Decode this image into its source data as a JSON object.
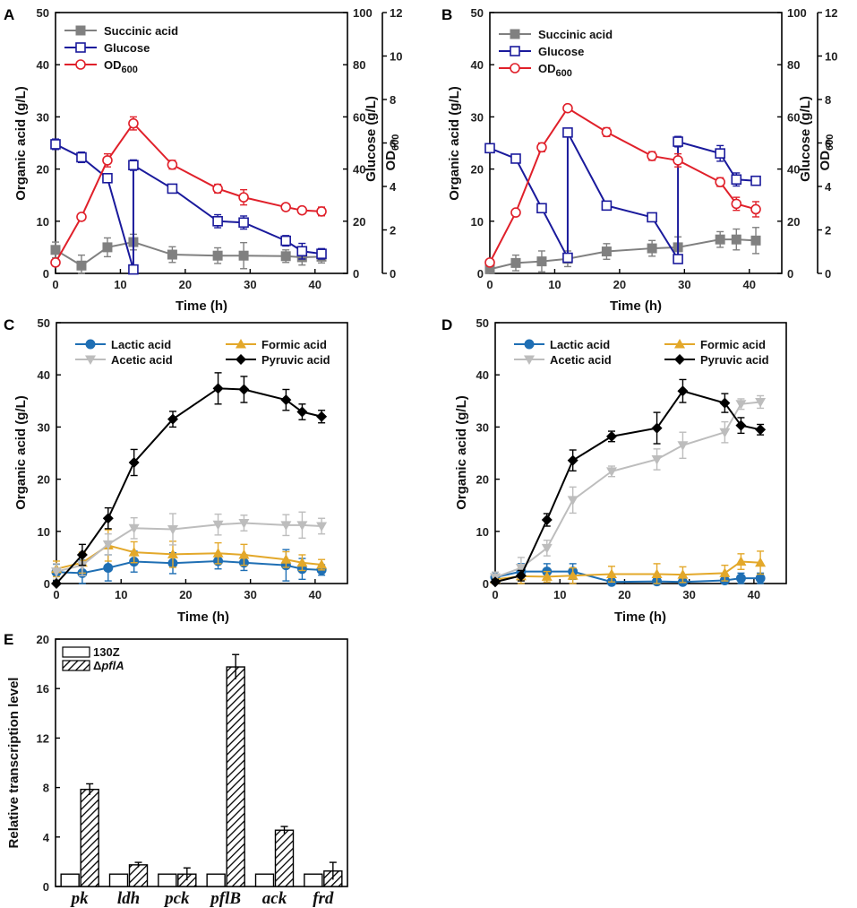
{
  "chart_data": [
    {
      "panel": "A",
      "type": "line",
      "xlabel": "Time (h)",
      "ylabel": "Organic acid (g/L)",
      "y2label": "Glucose (g/L)",
      "y3label": "OD600",
      "xlim": [
        0,
        45
      ],
      "xticks": [
        0,
        10,
        20,
        30,
        40
      ],
      "ylim": [
        0,
        50
      ],
      "yticks": [
        0,
        10,
        20,
        30,
        40,
        50
      ],
      "y2lim": [
        0,
        100
      ],
      "y2ticks": [
        0,
        20,
        40,
        60,
        80,
        100
      ],
      "y3lim": [
        0,
        12
      ],
      "y3ticks": [
        0,
        2,
        4,
        6,
        8,
        10,
        12
      ],
      "legend_position": "top-left",
      "series": [
        {
          "name": "Succinic acid",
          "axis": "left",
          "color": "#808080",
          "marker": "square-filled",
          "x": [
            0,
            4,
            8,
            12,
            18,
            25,
            29,
            35.5,
            38,
            41
          ],
          "y": [
            4.5,
            1.5,
            5.0,
            6.0,
            3.6,
            3.4,
            3.4,
            3.3,
            3.1,
            3.2
          ],
          "err": [
            1.5,
            2.0,
            1.8,
            1.5,
            1.5,
            1.5,
            2.5,
            1.2,
            1.5,
            1.2
          ]
        },
        {
          "name": "Glucose",
          "axis": "right",
          "color": "#1a1a9c",
          "marker": "square-open",
          "x": [
            0,
            4,
            8,
            12,
            12,
            18,
            25,
            29,
            35.5,
            38,
            41
          ],
          "y": [
            49.5,
            44.5,
            36.5,
            1.5,
            41.5,
            32.5,
            20,
            19.5,
            12.5,
            8.5,
            7.5
          ],
          "err": [
            2,
            2,
            1.5,
            1,
            2,
            1,
            2.5,
            2.5,
            2,
            3,
            2
          ]
        },
        {
          "name": "OD600",
          "label_main": "OD",
          "label_sub": "600",
          "axis": "right2",
          "color": "#e0202a",
          "marker": "circle-open",
          "x": [
            0,
            4,
            8,
            12,
            18,
            25,
            29,
            35.5,
            38,
            41
          ],
          "y": [
            0.5,
            2.6,
            5.2,
            6.9,
            5.0,
            3.9,
            3.5,
            3.05,
            2.9,
            2.85
          ],
          "err": [
            0.15,
            0.15,
            0.3,
            0.3,
            0.2,
            0.2,
            0.35,
            0.15,
            0.15,
            0.2
          ]
        }
      ]
    },
    {
      "panel": "B",
      "type": "line",
      "xlabel": "Time (h)",
      "ylabel": "Organic acid (g/L)",
      "y2label": "Glucose (g/L)",
      "y3label": "OD600",
      "xlim": [
        0,
        45
      ],
      "xticks": [
        0,
        10,
        20,
        30,
        40
      ],
      "ylim": [
        0,
        50
      ],
      "yticks": [
        0,
        10,
        20,
        30,
        40,
        50
      ],
      "y2lim": [
        0,
        100
      ],
      "y2ticks": [
        0,
        20,
        40,
        60,
        80,
        100
      ],
      "y3lim": [
        0,
        12
      ],
      "y3ticks": [
        0,
        2,
        4,
        6,
        8,
        10,
        12
      ],
      "legend_position": "top-left",
      "series": [
        {
          "name": "Succinic acid",
          "axis": "left",
          "color": "#808080",
          "marker": "square-filled",
          "x": [
            0,
            4,
            8,
            12,
            18,
            25,
            29,
            35.5,
            38,
            41
          ],
          "y": [
            0.8,
            2.0,
            2.3,
            2.8,
            4.2,
            4.8,
            5.0,
            6.5,
            6.5,
            6.3
          ],
          "err": [
            1,
            1.5,
            2,
            1.5,
            1.5,
            1.5,
            2,
            1.5,
            2,
            2.5
          ]
        },
        {
          "name": "Glucose",
          "axis": "right",
          "color": "#1a1a9c",
          "marker": "square-open",
          "x": [
            0,
            4,
            8,
            12,
            12,
            18,
            25,
            29,
            29,
            35.5,
            38,
            41
          ],
          "y": [
            48,
            44,
            25,
            6,
            54,
            26,
            21.5,
            5.5,
            50.5,
            46,
            36,
            35.5
          ],
          "err": [
            1,
            1,
            1,
            1.5,
            1,
            1.5,
            1,
            1,
            2,
            3,
            2.5,
            1.5
          ]
        },
        {
          "name": "OD600",
          "label_main": "OD",
          "label_sub": "600",
          "axis": "right2",
          "color": "#e0202a",
          "marker": "circle-open",
          "x": [
            0,
            4,
            8,
            12,
            18,
            25,
            29,
            35.5,
            38,
            41
          ],
          "y": [
            0.5,
            2.8,
            5.8,
            7.6,
            6.5,
            5.4,
            5.2,
            4.2,
            3.2,
            2.95
          ],
          "err": [
            0.1,
            0.1,
            0.2,
            0.15,
            0.2,
            0.2,
            0.3,
            0.2,
            0.3,
            0.35
          ]
        }
      ]
    },
    {
      "panel": "C",
      "type": "line",
      "xlabel": "Time (h)",
      "ylabel": "Organic acid (g/L)",
      "xlim": [
        0,
        45
      ],
      "xticks": [
        0,
        10,
        20,
        30,
        40
      ],
      "ylim": [
        0,
        50
      ],
      "yticks": [
        0,
        10,
        20,
        30,
        40,
        50
      ],
      "legend_position": "top",
      "series": [
        {
          "name": "Lactic acid",
          "color": "#1f6fb4",
          "marker": "circle-filled",
          "x": [
            0,
            4,
            8,
            12,
            18,
            25,
            29,
            35.5,
            38,
            41
          ],
          "y": [
            2.2,
            2.0,
            3.0,
            4.2,
            3.9,
            4.3,
            4.0,
            3.5,
            2.8,
            2.6
          ],
          "err": [
            1.5,
            2.5,
            2.5,
            2,
            2,
            1.5,
            1.5,
            3,
            2,
            1
          ]
        },
        {
          "name": "Formic acid",
          "color": "#e3a82a",
          "marker": "triangle-up",
          "x": [
            0,
            4,
            8,
            12,
            18,
            25,
            29,
            35.5,
            38,
            41
          ],
          "y": [
            2.8,
            4.0,
            7.3,
            6.0,
            5.6,
            5.8,
            5.5,
            4.6,
            4.0,
            3.6
          ],
          "err": [
            1.5,
            2,
            3,
            2,
            2.5,
            2,
            2,
            1.5,
            1.5,
            1
          ]
        },
        {
          "name": "Acetic acid",
          "color": "#bdbdbd",
          "marker": "triangle-down",
          "x": [
            0,
            4,
            8,
            12,
            18,
            25,
            29,
            35.5,
            38,
            41
          ],
          "y": [
            2.3,
            3.5,
            7.5,
            10.6,
            10.4,
            11.3,
            11.6,
            11.2,
            11.2,
            11.0
          ],
          "err": [
            1.5,
            2,
            2,
            2,
            3,
            2,
            1.5,
            2,
            2.5,
            1.5
          ]
        },
        {
          "name": "Pyruvic acid",
          "color": "#000000",
          "marker": "diamond",
          "x": [
            0,
            4,
            8,
            12,
            18,
            25,
            29,
            35.5,
            38,
            41
          ],
          "y": [
            0,
            5.5,
            12.5,
            23.2,
            31.5,
            37.4,
            37.2,
            35.2,
            32.9,
            32.0
          ],
          "err": [
            0.5,
            2,
            2,
            2.5,
            1.5,
            3,
            2.5,
            2,
            1.5,
            1.2
          ]
        }
      ]
    },
    {
      "panel": "D",
      "type": "line",
      "xlabel": "Time (h)",
      "ylabel": "Organic acid (g/L)",
      "xlim": [
        0,
        45
      ],
      "xticks": [
        0,
        10,
        20,
        30,
        40
      ],
      "ylim": [
        0,
        50
      ],
      "yticks": [
        0,
        10,
        20,
        30,
        40,
        50
      ],
      "legend_position": "top",
      "series": [
        {
          "name": "Lactic acid",
          "color": "#1f6fb4",
          "marker": "circle-filled",
          "x": [
            0,
            4,
            8,
            12,
            18,
            25,
            29,
            35.5,
            38,
            41
          ],
          "y": [
            1.2,
            2.3,
            2.3,
            2.3,
            0.3,
            0.4,
            0.3,
            0.6,
            1.0,
            1.0
          ],
          "err": [
            1,
            1.5,
            1.5,
            1.5,
            0.5,
            0.5,
            0.5,
            0.5,
            1,
            1
          ]
        },
        {
          "name": "Formic acid",
          "color": "#e3a82a",
          "marker": "triangle-up",
          "x": [
            0,
            4,
            8,
            12,
            18,
            25,
            29,
            35.5,
            38,
            41
          ],
          "y": [
            0.8,
            1.4,
            1.3,
            1.5,
            1.8,
            1.8,
            1.7,
            2.0,
            4.2,
            4.0
          ],
          "err": [
            0.8,
            1.5,
            1,
            1.5,
            1.5,
            2,
            1.5,
            1.5,
            1.5,
            2.2
          ]
        },
        {
          "name": "Acetic acid",
          "color": "#bdbdbd",
          "marker": "triangle-down",
          "x": [
            0,
            4,
            8,
            12,
            18,
            25,
            29,
            35.5,
            38,
            41
          ],
          "y": [
            1.2,
            3.0,
            6.8,
            16.0,
            21.5,
            23.8,
            26.5,
            29.0,
            34.4,
            34.8
          ],
          "err": [
            1,
            2,
            1.5,
            2.5,
            1,
            2,
            2.5,
            2,
            1,
            1.2
          ]
        },
        {
          "name": "Pyruvic acid",
          "color": "#000000",
          "marker": "diamond",
          "x": [
            0,
            4,
            8,
            12,
            18,
            25,
            29,
            35.5,
            38,
            41
          ],
          "y": [
            0.3,
            1.5,
            12.2,
            23.6,
            28.2,
            29.8,
            36.9,
            34.6,
            30.3,
            29.5
          ],
          "err": [
            0.5,
            1,
            1.2,
            2,
            1,
            3,
            2.2,
            1.8,
            1.5,
            1
          ]
        }
      ]
    },
    {
      "panel": "E",
      "type": "bar",
      "ylabel": "Relative transcription level",
      "ylim": [
        0,
        20
      ],
      "yticks": [
        0,
        4,
        8,
        12,
        16,
        20
      ],
      "legend_position": "top-left",
      "categories": [
        "pk",
        "ldh",
        "pck",
        "pflB",
        "ack",
        "frd"
      ],
      "series": [
        {
          "name": "130Z",
          "label_main": "130Z",
          "fill": "open",
          "values": [
            1,
            1,
            1,
            1,
            1,
            1
          ],
          "err": [
            0,
            0,
            0,
            0,
            0,
            0
          ]
        },
        {
          "name": "ΔpflA",
          "label_main": "Δ",
          "label_sub": "pflA",
          "fill": "hatched",
          "values": [
            7.85,
            1.75,
            1.0,
            17.75,
            4.55,
            1.25
          ],
          "err": [
            0.45,
            0.2,
            0.5,
            1.0,
            0.3,
            0.7
          ]
        }
      ]
    }
  ]
}
